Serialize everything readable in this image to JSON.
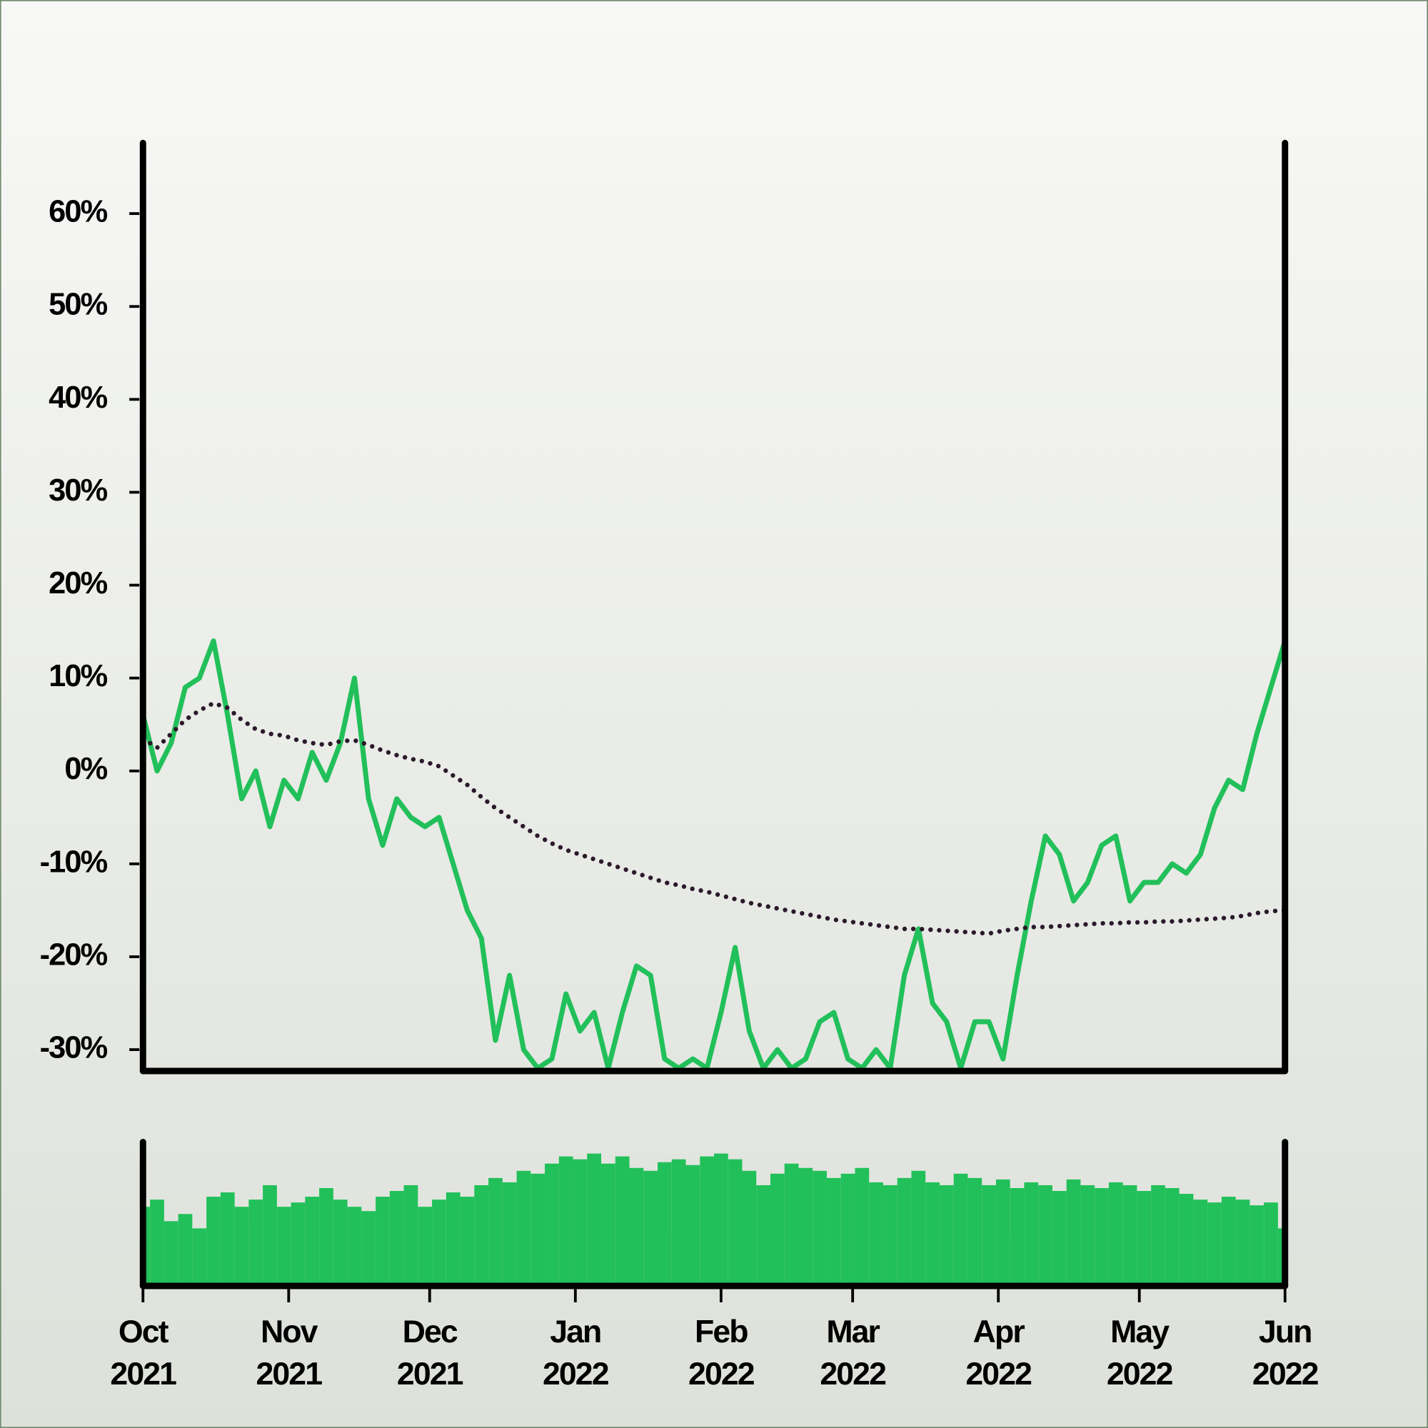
{
  "chart_data": [
    {
      "type": "line",
      "x": [
        0,
        3,
        6,
        9,
        12,
        15,
        18,
        21,
        24,
        27,
        30,
        33,
        36,
        39,
        42,
        45,
        48,
        51,
        54,
        57,
        60,
        63,
        66,
        69,
        72,
        75,
        78,
        81,
        84,
        87,
        90,
        93,
        96,
        99,
        102,
        105,
        108,
        111,
        114,
        117,
        120,
        123,
        126,
        129,
        132,
        135,
        138,
        141,
        144,
        147,
        150,
        153,
        156,
        159,
        162,
        165,
        168,
        171,
        174,
        177,
        180,
        183,
        186,
        189,
        192,
        195,
        198,
        201,
        204,
        207,
        210,
        213,
        216,
        219,
        222,
        225,
        228,
        231,
        234,
        237,
        240,
        243
      ],
      "xlim": [
        0,
        243
      ],
      "ylim": [
        -32.3,
        67.6
      ],
      "yticks": [
        {
          "value": -30,
          "label": "-30%"
        },
        {
          "value": -20,
          "label": "-20%"
        },
        {
          "value": -10,
          "label": "-10%"
        },
        {
          "value": 0,
          "label": "0%"
        },
        {
          "value": 10,
          "label": "10%"
        },
        {
          "value": 20,
          "label": "20%"
        },
        {
          "value": 30,
          "label": "30%"
        },
        {
          "value": 40,
          "label": "40%"
        },
        {
          "value": 50,
          "label": "50%"
        },
        {
          "value": 60,
          "label": "60%"
        }
      ],
      "series": [
        {
          "color": "#22c05a",
          "style": "solid",
          "values": [
            6,
            0,
            3,
            9,
            10,
            14,
            6,
            -3,
            0,
            -6,
            -1,
            -3,
            2,
            -1,
            3,
            10,
            -3,
            -8,
            -3,
            -5,
            -6,
            -5,
            -10,
            -15,
            -18,
            -29,
            -22,
            -30,
            -32,
            -31,
            -24,
            -28,
            -26,
            -32,
            -26,
            -21,
            -22,
            -31,
            -32,
            -31,
            -32,
            -26,
            -19,
            -28,
            -32,
            -30,
            -32,
            -31,
            -27,
            -26,
            -31,
            -32,
            -30,
            -32,
            -22,
            -17,
            -25,
            -27,
            -32,
            -27,
            -27,
            -31,
            -22,
            -14,
            -7,
            -9,
            -14,
            -12,
            -8,
            -7,
            -14,
            -12,
            -12,
            -10,
            -11,
            -9,
            -4,
            -1,
            -2,
            4,
            9,
            14
          ]
        },
        {
          "color": "#2a1a2a",
          "style": "dotted",
          "values": [
            3.5,
            2.5,
            4,
            5.5,
            6.5,
            7.3,
            6.8,
            5.5,
            4.5,
            4,
            3.8,
            3.3,
            3,
            2.8,
            3.2,
            3.3,
            2.8,
            2.2,
            1.7,
            1.3,
            1,
            0.5,
            -0.5,
            -1.5,
            -2.8,
            -4,
            -5,
            -6,
            -7,
            -7.8,
            -8.5,
            -9,
            -9.5,
            -10,
            -10.5,
            -11,
            -11.5,
            -12,
            -12.3,
            -12.7,
            -13,
            -13.4,
            -13.8,
            -14.2,
            -14.5,
            -14.8,
            -15.1,
            -15.4,
            -15.7,
            -16,
            -16.2,
            -16.4,
            -16.6,
            -16.8,
            -17,
            -17,
            -17.1,
            -17.2,
            -17.3,
            -17.4,
            -17.5,
            -17.2,
            -17,
            -16.8,
            -16.8,
            -16.7,
            -16.6,
            -16.5,
            -16.4,
            -16.4,
            -16.3,
            -16.3,
            -16.2,
            -16.2,
            -16.1,
            -16,
            -15.9,
            -15.8,
            -15.6,
            -15.3,
            -15.1,
            -15
          ]
        }
      ]
    },
    {
      "type": "bar",
      "x": [
        0,
        3,
        6,
        9,
        12,
        15,
        18,
        21,
        24,
        27,
        30,
        33,
        36,
        39,
        42,
        45,
        48,
        51,
        54,
        57,
        60,
        63,
        66,
        69,
        72,
        75,
        78,
        81,
        84,
        87,
        90,
        93,
        96,
        99,
        102,
        105,
        108,
        111,
        114,
        117,
        120,
        123,
        126,
        129,
        132,
        135,
        138,
        141,
        144,
        147,
        150,
        153,
        156,
        159,
        162,
        165,
        168,
        171,
        174,
        177,
        180,
        183,
        186,
        189,
        192,
        195,
        198,
        201,
        204,
        207,
        210,
        213,
        216,
        219,
        222,
        225,
        228,
        231,
        234,
        237,
        240,
        243
      ],
      "xlim": [
        0,
        243
      ],
      "ylim": [
        0,
        100
      ],
      "color": "#22c05a",
      "values": [
        55,
        60,
        45,
        50,
        40,
        62,
        65,
        55,
        60,
        70,
        55,
        58,
        62,
        68,
        60,
        55,
        52,
        62,
        66,
        70,
        55,
        60,
        65,
        62,
        70,
        75,
        72,
        80,
        78,
        85,
        90,
        88,
        92,
        85,
        90,
        82,
        80,
        86,
        88,
        84,
        90,
        92,
        88,
        80,
        70,
        78,
        85,
        82,
        80,
        75,
        78,
        82,
        72,
        70,
        75,
        80,
        72,
        70,
        78,
        75,
        70,
        74,
        68,
        72,
        70,
        66,
        74,
        70,
        68,
        72,
        70,
        66,
        70,
        68,
        64,
        60,
        58,
        62,
        60,
        56,
        58,
        40
      ],
      "xticks": [
        {
          "value": 0,
          "label": "Oct 2021"
        },
        {
          "value": 31,
          "label": "Nov 2021"
        },
        {
          "value": 61,
          "label": "Dec 2021"
        },
        {
          "value": 92,
          "label": "Jan 2022"
        },
        {
          "value": 123,
          "label": "Feb 2022"
        },
        {
          "value": 151,
          "label": "Mar 2022"
        },
        {
          "value": 182,
          "label": "Apr 2022"
        },
        {
          "value": 212,
          "label": "May 2022"
        },
        {
          "value": 243,
          "label": "Jun 2022"
        }
      ]
    }
  ]
}
